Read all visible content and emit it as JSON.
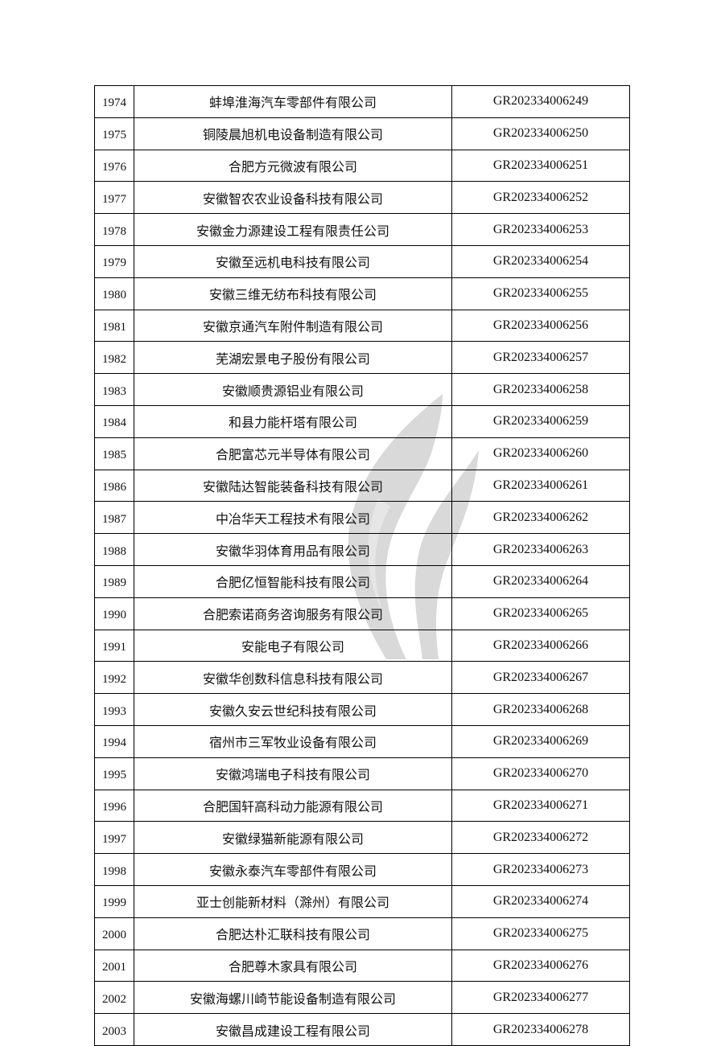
{
  "table": {
    "rows": [
      {
        "no": "1974",
        "name": "蚌埠淮海汽车零部件有限公司",
        "code": "GR202334006249"
      },
      {
        "no": "1975",
        "name": "铜陵晨旭机电设备制造有限公司",
        "code": "GR202334006250"
      },
      {
        "no": "1976",
        "name": "合肥方元微波有限公司",
        "code": "GR202334006251"
      },
      {
        "no": "1977",
        "name": "安徽智农农业设备科技有限公司",
        "code": "GR202334006252"
      },
      {
        "no": "1978",
        "name": "安徽金力源建设工程有限责任公司",
        "code": "GR202334006253"
      },
      {
        "no": "1979",
        "name": "安徽至远机电科技有限公司",
        "code": "GR202334006254"
      },
      {
        "no": "1980",
        "name": "安徽三维无纺布科技有限公司",
        "code": "GR202334006255"
      },
      {
        "no": "1981",
        "name": "安徽京通汽车附件制造有限公司",
        "code": "GR202334006256"
      },
      {
        "no": "1982",
        "name": "芜湖宏景电子股份有限公司",
        "code": "GR202334006257"
      },
      {
        "no": "1983",
        "name": "安徽顺贵源铝业有限公司",
        "code": "GR202334006258"
      },
      {
        "no": "1984",
        "name": "和县力能杆塔有限公司",
        "code": "GR202334006259"
      },
      {
        "no": "1985",
        "name": "合肥富芯元半导体有限公司",
        "code": "GR202334006260"
      },
      {
        "no": "1986",
        "name": "安徽陆达智能装备科技有限公司",
        "code": "GR202334006261"
      },
      {
        "no": "1987",
        "name": "中冶华天工程技术有限公司",
        "code": "GR202334006262"
      },
      {
        "no": "1988",
        "name": "安徽华羽体育用品有限公司",
        "code": "GR202334006263"
      },
      {
        "no": "1989",
        "name": "合肥亿恒智能科技有限公司",
        "code": "GR202334006264"
      },
      {
        "no": "1990",
        "name": "合肥索诺商务咨询服务有限公司",
        "code": "GR202334006265"
      },
      {
        "no": "1991",
        "name": "安能电子有限公司",
        "code": "GR202334006266"
      },
      {
        "no": "1992",
        "name": "安徽华创数科信息科技有限公司",
        "code": "GR202334006267"
      },
      {
        "no": "1993",
        "name": "安徽久安云世纪科技有限公司",
        "code": "GR202334006268"
      },
      {
        "no": "1994",
        "name": "宿州市三军牧业设备有限公司",
        "code": "GR202334006269"
      },
      {
        "no": "1995",
        "name": "安徽鸿瑞电子科技有限公司",
        "code": "GR202334006270"
      },
      {
        "no": "1996",
        "name": "合肥国轩高科动力能源有限公司",
        "code": "GR202334006271"
      },
      {
        "no": "1997",
        "name": "安徽绿猫新能源有限公司",
        "code": "GR202334006272"
      },
      {
        "no": "1998",
        "name": "安徽永泰汽车零部件有限公司",
        "code": "GR202334006273"
      },
      {
        "no": "1999",
        "name": "亚士创能新材料（滁州）有限公司",
        "code": "GR202334006274"
      },
      {
        "no": "2000",
        "name": "合肥达朴汇联科技有限公司",
        "code": "GR202334006275"
      },
      {
        "no": "2001",
        "name": "合肥尊木家具有限公司",
        "code": "GR202334006276"
      },
      {
        "no": "2002",
        "name": "安徽海螺川崎节能设备制造有限公司",
        "code": "GR202334006277"
      },
      {
        "no": "2003",
        "name": "安徽昌成建设工程有限公司",
        "code": "GR202334006278"
      }
    ]
  },
  "watermark": {
    "icon": "flame-logo-watermark",
    "color": "#d9d9d9"
  }
}
